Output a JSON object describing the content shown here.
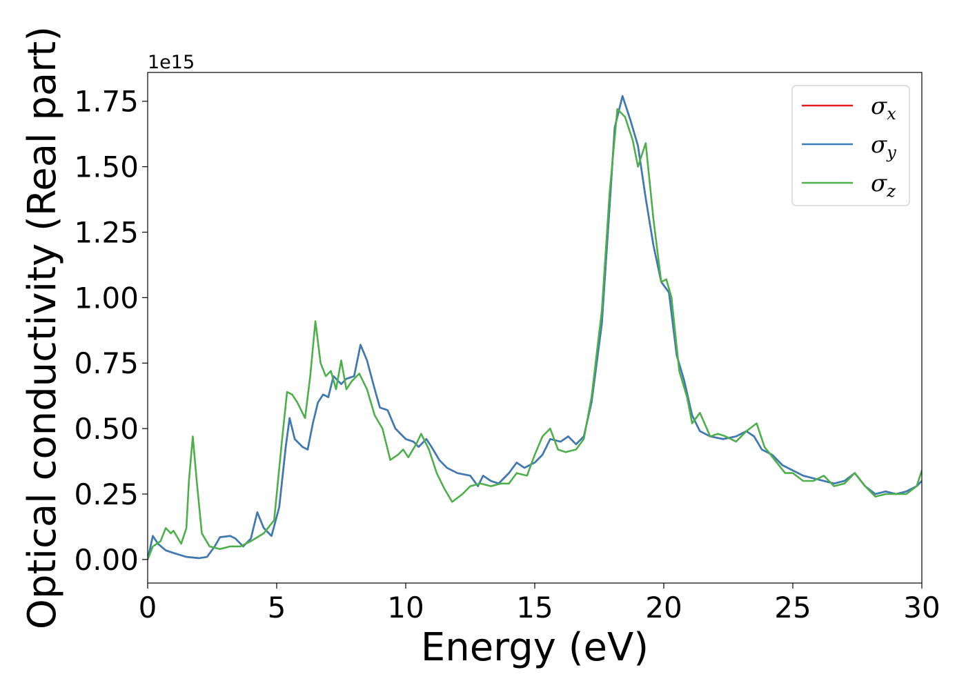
{
  "chart_data": {
    "type": "line",
    "title": "",
    "xlabel": "Energy (eV)",
    "ylabel": "Optical conductivity (Real part)",
    "y_offset_label": "1e15",
    "xlim": [
      0,
      30
    ],
    "ylim": [
      -0.09,
      1.86
    ],
    "x_ticks": [
      0,
      5,
      10,
      15,
      20,
      25,
      30
    ],
    "x_tick_labels": [
      "0",
      "5",
      "10",
      "15",
      "20",
      "25",
      "30"
    ],
    "y_ticks": [
      0.0,
      0.25,
      0.5,
      0.75,
      1.0,
      1.25,
      1.5,
      1.75
    ],
    "y_tick_labels": [
      "0.00",
      "0.25",
      "0.50",
      "0.75",
      "1.00",
      "1.25",
      "1.50",
      "1.75"
    ],
    "grid": false,
    "legend_position": "top-right",
    "series": [
      {
        "name": "x",
        "color": "#e41a1c",
        "points": [
          [
            0,
            0
          ],
          [
            0.2,
            0.09
          ],
          [
            0.4,
            0.06
          ],
          [
            0.7,
            0.035
          ],
          [
            1.0,
            0.025
          ],
          [
            1.5,
            0.01
          ],
          [
            2.0,
            0.005
          ],
          [
            2.3,
            0.01
          ],
          [
            2.6,
            0.05
          ],
          [
            2.8,
            0.085
          ],
          [
            3.2,
            0.09
          ],
          [
            3.4,
            0.08
          ],
          [
            3.7,
            0.05
          ],
          [
            4.0,
            0.08
          ],
          [
            4.25,
            0.18
          ],
          [
            4.5,
            0.12
          ],
          [
            4.8,
            0.09
          ],
          [
            5.1,
            0.2
          ],
          [
            5.35,
            0.43
          ],
          [
            5.5,
            0.54
          ],
          [
            5.7,
            0.46
          ],
          [
            6.0,
            0.43
          ],
          [
            6.2,
            0.42
          ],
          [
            6.4,
            0.52
          ],
          [
            6.6,
            0.6
          ],
          [
            6.8,
            0.63
          ],
          [
            7.0,
            0.62
          ],
          [
            7.2,
            0.7
          ],
          [
            7.5,
            0.67
          ],
          [
            7.7,
            0.69
          ],
          [
            8.0,
            0.7
          ],
          [
            8.25,
            0.82
          ],
          [
            8.5,
            0.76
          ],
          [
            8.8,
            0.65
          ],
          [
            9.0,
            0.58
          ],
          [
            9.3,
            0.57
          ],
          [
            9.6,
            0.5
          ],
          [
            10.0,
            0.46
          ],
          [
            10.3,
            0.45
          ],
          [
            10.5,
            0.43
          ],
          [
            10.8,
            0.46
          ],
          [
            11.0,
            0.43
          ],
          [
            11.3,
            0.38
          ],
          [
            11.6,
            0.35
          ],
          [
            12.0,
            0.33
          ],
          [
            12.5,
            0.32
          ],
          [
            12.8,
            0.28
          ],
          [
            13.0,
            0.32
          ],
          [
            13.3,
            0.3
          ],
          [
            13.6,
            0.29
          ],
          [
            14.0,
            0.33
          ],
          [
            14.3,
            0.37
          ],
          [
            14.6,
            0.35
          ],
          [
            15.0,
            0.37
          ],
          [
            15.3,
            0.4
          ],
          [
            15.6,
            0.46
          ],
          [
            16.0,
            0.45
          ],
          [
            16.3,
            0.47
          ],
          [
            16.6,
            0.44
          ],
          [
            16.9,
            0.47
          ],
          [
            17.2,
            0.6
          ],
          [
            17.6,
            0.9
          ],
          [
            17.9,
            1.35
          ],
          [
            18.1,
            1.65
          ],
          [
            18.4,
            1.77
          ],
          [
            18.7,
            1.68
          ],
          [
            19.0,
            1.58
          ],
          [
            19.3,
            1.38
          ],
          [
            19.6,
            1.2
          ],
          [
            19.9,
            1.06
          ],
          [
            20.2,
            1.02
          ],
          [
            20.5,
            0.78
          ],
          [
            20.8,
            0.68
          ],
          [
            21.1,
            0.55
          ],
          [
            21.4,
            0.49
          ],
          [
            21.8,
            0.47
          ],
          [
            22.3,
            0.46
          ],
          [
            22.8,
            0.47
          ],
          [
            23.2,
            0.49
          ],
          [
            23.5,
            0.47
          ],
          [
            23.8,
            0.42
          ],
          [
            24.2,
            0.4
          ],
          [
            24.6,
            0.36
          ],
          [
            25.0,
            0.34
          ],
          [
            25.4,
            0.32
          ],
          [
            25.8,
            0.31
          ],
          [
            26.2,
            0.3
          ],
          [
            26.6,
            0.29
          ],
          [
            27.0,
            0.3
          ],
          [
            27.4,
            0.33
          ],
          [
            27.8,
            0.28
          ],
          [
            28.2,
            0.25
          ],
          [
            28.6,
            0.26
          ],
          [
            29.0,
            0.25
          ],
          [
            29.4,
            0.26
          ],
          [
            29.8,
            0.28
          ],
          [
            30.0,
            0.3
          ]
        ]
      },
      {
        "name": "y",
        "color": "#377eb8",
        "points": [
          [
            0,
            0
          ],
          [
            0.2,
            0.09
          ],
          [
            0.4,
            0.06
          ],
          [
            0.7,
            0.035
          ],
          [
            1.0,
            0.025
          ],
          [
            1.5,
            0.01
          ],
          [
            2.0,
            0.005
          ],
          [
            2.3,
            0.01
          ],
          [
            2.6,
            0.05
          ],
          [
            2.8,
            0.085
          ],
          [
            3.2,
            0.09
          ],
          [
            3.4,
            0.08
          ],
          [
            3.7,
            0.05
          ],
          [
            4.0,
            0.08
          ],
          [
            4.25,
            0.18
          ],
          [
            4.5,
            0.12
          ],
          [
            4.8,
            0.09
          ],
          [
            5.1,
            0.2
          ],
          [
            5.35,
            0.43
          ],
          [
            5.5,
            0.54
          ],
          [
            5.7,
            0.46
          ],
          [
            6.0,
            0.43
          ],
          [
            6.2,
            0.42
          ],
          [
            6.4,
            0.52
          ],
          [
            6.6,
            0.6
          ],
          [
            6.8,
            0.63
          ],
          [
            7.0,
            0.62
          ],
          [
            7.2,
            0.7
          ],
          [
            7.5,
            0.67
          ],
          [
            7.7,
            0.69
          ],
          [
            8.0,
            0.7
          ],
          [
            8.25,
            0.82
          ],
          [
            8.5,
            0.76
          ],
          [
            8.8,
            0.65
          ],
          [
            9.0,
            0.58
          ],
          [
            9.3,
            0.57
          ],
          [
            9.6,
            0.5
          ],
          [
            10.0,
            0.46
          ],
          [
            10.3,
            0.45
          ],
          [
            10.5,
            0.43
          ],
          [
            10.8,
            0.46
          ],
          [
            11.0,
            0.43
          ],
          [
            11.3,
            0.38
          ],
          [
            11.6,
            0.35
          ],
          [
            12.0,
            0.33
          ],
          [
            12.5,
            0.32
          ],
          [
            12.8,
            0.28
          ],
          [
            13.0,
            0.32
          ],
          [
            13.3,
            0.3
          ],
          [
            13.6,
            0.29
          ],
          [
            14.0,
            0.33
          ],
          [
            14.3,
            0.37
          ],
          [
            14.6,
            0.35
          ],
          [
            15.0,
            0.37
          ],
          [
            15.3,
            0.4
          ],
          [
            15.6,
            0.46
          ],
          [
            16.0,
            0.45
          ],
          [
            16.3,
            0.47
          ],
          [
            16.6,
            0.44
          ],
          [
            16.9,
            0.47
          ],
          [
            17.2,
            0.6
          ],
          [
            17.6,
            0.9
          ],
          [
            17.9,
            1.35
          ],
          [
            18.1,
            1.65
          ],
          [
            18.4,
            1.77
          ],
          [
            18.7,
            1.68
          ],
          [
            19.0,
            1.58
          ],
          [
            19.3,
            1.38
          ],
          [
            19.6,
            1.2
          ],
          [
            19.9,
            1.06
          ],
          [
            20.2,
            1.02
          ],
          [
            20.5,
            0.78
          ],
          [
            20.8,
            0.68
          ],
          [
            21.1,
            0.55
          ],
          [
            21.4,
            0.49
          ],
          [
            21.8,
            0.47
          ],
          [
            22.3,
            0.46
          ],
          [
            22.8,
            0.47
          ],
          [
            23.2,
            0.49
          ],
          [
            23.5,
            0.47
          ],
          [
            23.8,
            0.42
          ],
          [
            24.2,
            0.4
          ],
          [
            24.6,
            0.36
          ],
          [
            25.0,
            0.34
          ],
          [
            25.4,
            0.32
          ],
          [
            25.8,
            0.31
          ],
          [
            26.2,
            0.3
          ],
          [
            26.6,
            0.29
          ],
          [
            27.0,
            0.3
          ],
          [
            27.4,
            0.33
          ],
          [
            27.8,
            0.28
          ],
          [
            28.2,
            0.25
          ],
          [
            28.6,
            0.26
          ],
          [
            29.0,
            0.25
          ],
          [
            29.4,
            0.26
          ],
          [
            29.8,
            0.28
          ],
          [
            30.0,
            0.3
          ]
        ]
      },
      {
        "name": "z",
        "color": "#4daf4a",
        "points": [
          [
            0,
            0
          ],
          [
            0.2,
            0.05
          ],
          [
            0.5,
            0.07
          ],
          [
            0.7,
            0.12
          ],
          [
            0.9,
            0.1
          ],
          [
            1.0,
            0.11
          ],
          [
            1.3,
            0.06
          ],
          [
            1.5,
            0.12
          ],
          [
            1.6,
            0.3
          ],
          [
            1.75,
            0.47
          ],
          [
            1.9,
            0.3
          ],
          [
            2.1,
            0.1
          ],
          [
            2.4,
            0.05
          ],
          [
            2.8,
            0.04
          ],
          [
            3.2,
            0.05
          ],
          [
            3.6,
            0.05
          ],
          [
            4.0,
            0.07
          ],
          [
            4.5,
            0.1
          ],
          [
            4.9,
            0.15
          ],
          [
            5.2,
            0.45
          ],
          [
            5.4,
            0.64
          ],
          [
            5.6,
            0.63
          ],
          [
            5.8,
            0.6
          ],
          [
            6.1,
            0.54
          ],
          [
            6.3,
            0.7
          ],
          [
            6.5,
            0.91
          ],
          [
            6.7,
            0.75
          ],
          [
            6.9,
            0.7
          ],
          [
            7.1,
            0.72
          ],
          [
            7.3,
            0.65
          ],
          [
            7.5,
            0.76
          ],
          [
            7.7,
            0.65
          ],
          [
            7.9,
            0.68
          ],
          [
            8.2,
            0.71
          ],
          [
            8.5,
            0.65
          ],
          [
            8.8,
            0.55
          ],
          [
            9.1,
            0.5
          ],
          [
            9.4,
            0.38
          ],
          [
            9.7,
            0.4
          ],
          [
            9.9,
            0.42
          ],
          [
            10.1,
            0.39
          ],
          [
            10.4,
            0.44
          ],
          [
            10.6,
            0.48
          ],
          [
            10.9,
            0.42
          ],
          [
            11.2,
            0.33
          ],
          [
            11.5,
            0.27
          ],
          [
            11.8,
            0.22
          ],
          [
            12.2,
            0.25
          ],
          [
            12.5,
            0.28
          ],
          [
            12.9,
            0.29
          ],
          [
            13.3,
            0.28
          ],
          [
            13.7,
            0.29
          ],
          [
            14.0,
            0.29
          ],
          [
            14.3,
            0.33
          ],
          [
            14.7,
            0.32
          ],
          [
            15.0,
            0.4
          ],
          [
            15.3,
            0.47
          ],
          [
            15.6,
            0.5
          ],
          [
            15.9,
            0.42
          ],
          [
            16.2,
            0.41
          ],
          [
            16.6,
            0.42
          ],
          [
            16.9,
            0.46
          ],
          [
            17.2,
            0.62
          ],
          [
            17.6,
            0.95
          ],
          [
            17.9,
            1.4
          ],
          [
            18.2,
            1.72
          ],
          [
            18.5,
            1.69
          ],
          [
            18.8,
            1.6
          ],
          [
            19.0,
            1.5
          ],
          [
            19.3,
            1.59
          ],
          [
            19.6,
            1.3
          ],
          [
            19.9,
            1.06
          ],
          [
            20.1,
            1.07
          ],
          [
            20.3,
            1.0
          ],
          [
            20.6,
            0.72
          ],
          [
            20.9,
            0.62
          ],
          [
            21.1,
            0.52
          ],
          [
            21.4,
            0.56
          ],
          [
            21.8,
            0.47
          ],
          [
            22.1,
            0.48
          ],
          [
            22.4,
            0.47
          ],
          [
            22.8,
            0.45
          ],
          [
            23.2,
            0.49
          ],
          [
            23.6,
            0.52
          ],
          [
            23.9,
            0.43
          ],
          [
            24.3,
            0.38
          ],
          [
            24.7,
            0.33
          ],
          [
            25.0,
            0.33
          ],
          [
            25.4,
            0.3
          ],
          [
            25.8,
            0.3
          ],
          [
            26.2,
            0.32
          ],
          [
            26.6,
            0.28
          ],
          [
            27.0,
            0.29
          ],
          [
            27.4,
            0.33
          ],
          [
            27.8,
            0.28
          ],
          [
            28.2,
            0.24
          ],
          [
            28.6,
            0.25
          ],
          [
            29.0,
            0.25
          ],
          [
            29.4,
            0.25
          ],
          [
            29.8,
            0.28
          ],
          [
            30.0,
            0.34
          ]
        ]
      }
    ]
  }
}
